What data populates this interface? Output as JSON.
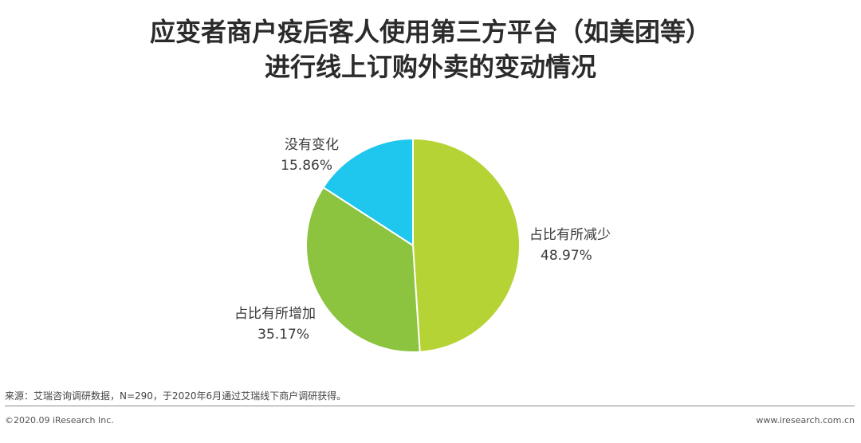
{
  "title": {
    "line1": "应变者商户疫后客人使用第三方平台（如美团等）",
    "line2": "进行线上订购外卖的变动情况"
  },
  "chart_data": {
    "type": "pie",
    "title": "应变者商户疫后客人使用第三方平台（如美团等）进行线上订购外卖的变动情况",
    "slices": [
      {
        "label": "占比有所减少",
        "value": 48.97,
        "value_label": "48.97%",
        "color": "#b5d334"
      },
      {
        "label": "占比有所增加",
        "value": 35.17,
        "value_label": "35.17%",
        "color": "#8cc33f"
      },
      {
        "label": "没有变化",
        "value": 15.86,
        "value_label": "15.86%",
        "color": "#1fc6ee"
      }
    ],
    "start_angle": "12 o'clock",
    "direction": "clockwise"
  },
  "footer": {
    "source": "来源：艾瑞咨询调研数据，N=290，于2020年6月通过艾瑞线下商户调研获得。",
    "copyright": "©2020.09 iResearch Inc.",
    "website": "www.iresearch.com.cn"
  }
}
